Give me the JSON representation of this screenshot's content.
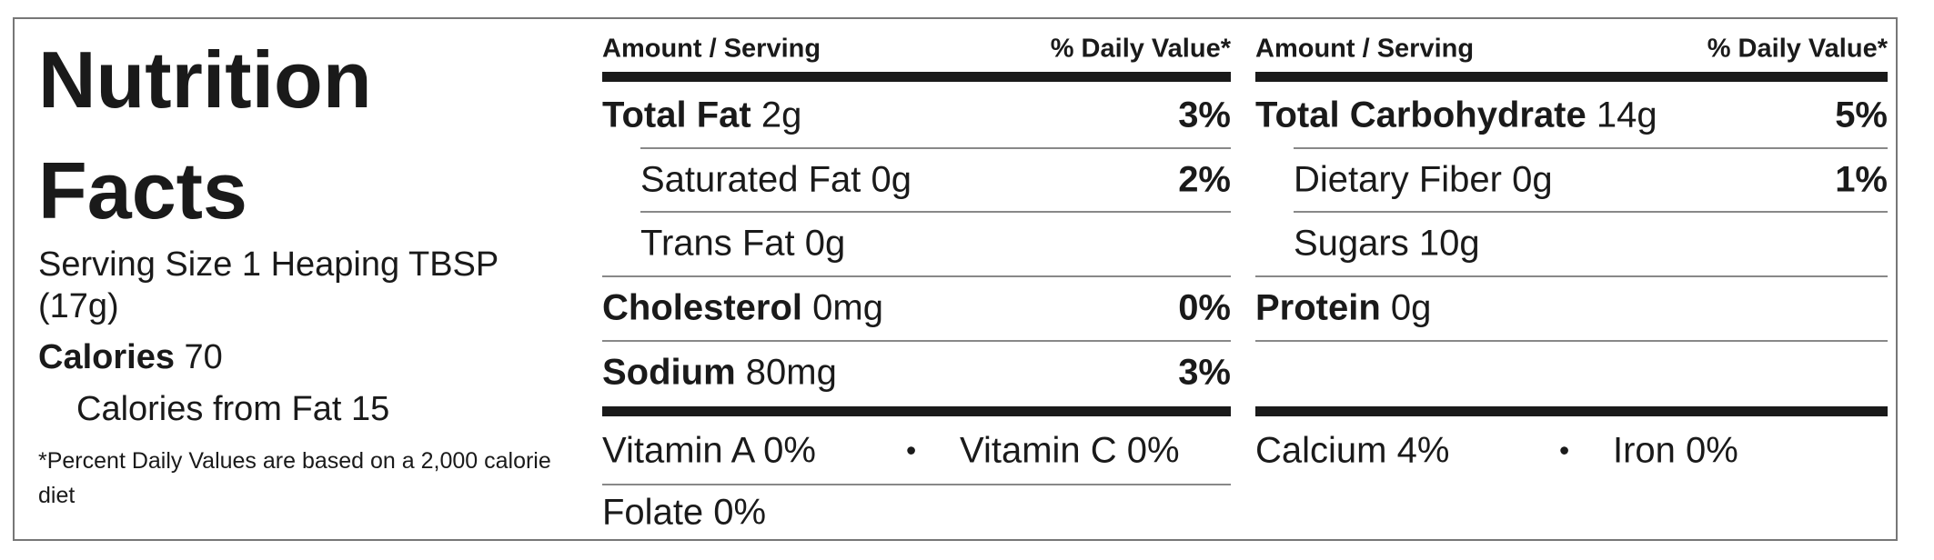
{
  "title_lines": [
    "Nutrition",
    "Facts"
  ],
  "serving_size": "Serving Size 1 Heaping TBSP (17g)",
  "calories": {
    "label": "Calories",
    "value": "70"
  },
  "calories_from_fat": "Calories from Fat 15",
  "footnote": "*Percent Daily Values are based on a 2,000 calorie diet",
  "columns": [
    {
      "header_amount": "Amount / Serving",
      "header_dv": "% Daily Value*",
      "nutrients": [
        {
          "name": "Total Fat",
          "amount": "2g",
          "dv": "3%",
          "sub": [
            {
              "name": "Saturated Fat",
              "amount": "0g",
              "dv": "2%"
            },
            {
              "name": "Trans Fat",
              "amount": "0g"
            }
          ]
        },
        {
          "name": "Cholesterol",
          "amount": "0mg",
          "dv": "0%"
        },
        {
          "name": "Sodium",
          "amount": "80mg",
          "dv": "3%"
        }
      ],
      "vitamins": [
        [
          "Vitamin A 0%",
          "Vitamin C 0%"
        ],
        [
          "Folate 0%"
        ]
      ]
    },
    {
      "header_amount": "Amount / Serving",
      "header_dv": "% Daily Value*",
      "nutrients": [
        {
          "name": "Total Carbohydrate",
          "amount": "14g",
          "dv": "5%",
          "sub": [
            {
              "name": "Dietary Fiber",
              "amount": "0g",
              "dv": "1%"
            },
            {
              "name": "Sugars",
              "amount": "10g"
            }
          ]
        },
        {
          "name": "Protein",
          "amount": "0g"
        }
      ],
      "vitamins": [
        [
          "Calcium 4%",
          "Iron 0%"
        ]
      ]
    }
  ]
}
